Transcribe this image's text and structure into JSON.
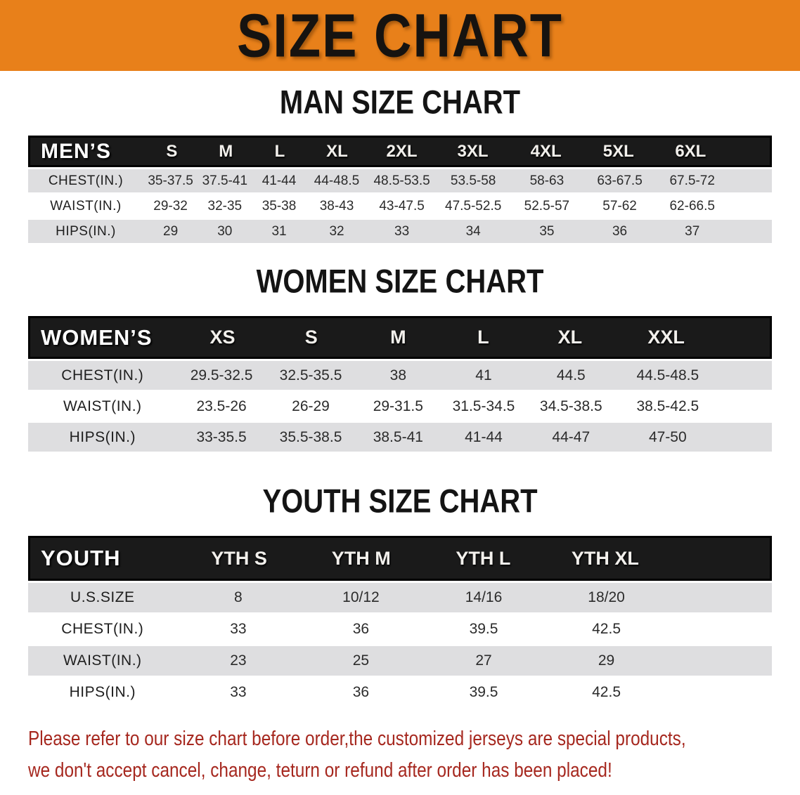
{
  "banner": {
    "title": "SIZE CHART"
  },
  "colors": {
    "banner_bg": "#E8801A",
    "banner_text": "#161310",
    "table_header_bg": "#1A1A1A",
    "table_header_text": "#FFFFFF",
    "row_stripe": "#DEDEE0",
    "footer_text": "#A6281F"
  },
  "sections": [
    {
      "heading": "MAN SIZE CHART",
      "corner_label": "MEN’S",
      "columns": [
        "S",
        "M",
        "L",
        "XL",
        "2XL",
        "3XL",
        "4XL",
        "5XL",
        "6XL"
      ],
      "rows": [
        {
          "label": "CHEST(IN.)",
          "values": [
            "35-37.5",
            "37.5-41",
            "41-44",
            "44-48.5",
            "48.5-53.5",
            "53.5-58",
            "58-63",
            "63-67.5",
            "67.5-72"
          ]
        },
        {
          "label": "WAIST(IN.)",
          "values": [
            "29-32",
            "32-35",
            "35-38",
            "38-43",
            "43-47.5",
            "47.5-52.5",
            "52.5-57",
            "57-62",
            "62-66.5"
          ]
        },
        {
          "label": "HIPS(IN.)",
          "values": [
            "29",
            "30",
            "31",
            "32",
            "33",
            "34",
            "35",
            "36",
            "37"
          ]
        }
      ]
    },
    {
      "heading": "WOMEN SIZE CHART",
      "corner_label": "WOMEN’S",
      "columns": [
        "XS",
        "S",
        "M",
        "L",
        "XL",
        "XXL"
      ],
      "rows": [
        {
          "label": "CHEST(IN.)",
          "values": [
            "29.5-32.5",
            "32.5-35.5",
            "38",
            "41",
            "44.5",
            "44.5-48.5"
          ]
        },
        {
          "label": "WAIST(IN.)",
          "values": [
            "23.5-26",
            "26-29",
            "29-31.5",
            "31.5-34.5",
            "34.5-38.5",
            "38.5-42.5"
          ]
        },
        {
          "label": "HIPS(IN.)",
          "values": [
            "33-35.5",
            "35.5-38.5",
            "38.5-41",
            "41-44",
            "44-47",
            "47-50"
          ]
        }
      ]
    },
    {
      "heading": "YOUTH SIZE CHART",
      "corner_label": "YOUTH",
      "columns": [
        "YTH S",
        "YTH M",
        "YTH L",
        "YTH XL"
      ],
      "rows": [
        {
          "label": "U.S.SIZE",
          "values": [
            "8",
            "10/12",
            "14/16",
            "18/20"
          ]
        },
        {
          "label": "CHEST(IN.)",
          "values": [
            "33",
            "36",
            "39.5",
            "42.5"
          ]
        },
        {
          "label": "WAIST(IN.)",
          "values": [
            "23",
            "25",
            "27",
            "29"
          ]
        },
        {
          "label": "HIPS(IN.)",
          "values": [
            "33",
            "36",
            "39.5",
            "42.5"
          ]
        }
      ]
    }
  ],
  "footer": {
    "line1": "Please refer to our size chart before order,the customized jerseys are special products,",
    "line2": "we don't accept cancel, change, teturn or refund after order has been placed!"
  }
}
